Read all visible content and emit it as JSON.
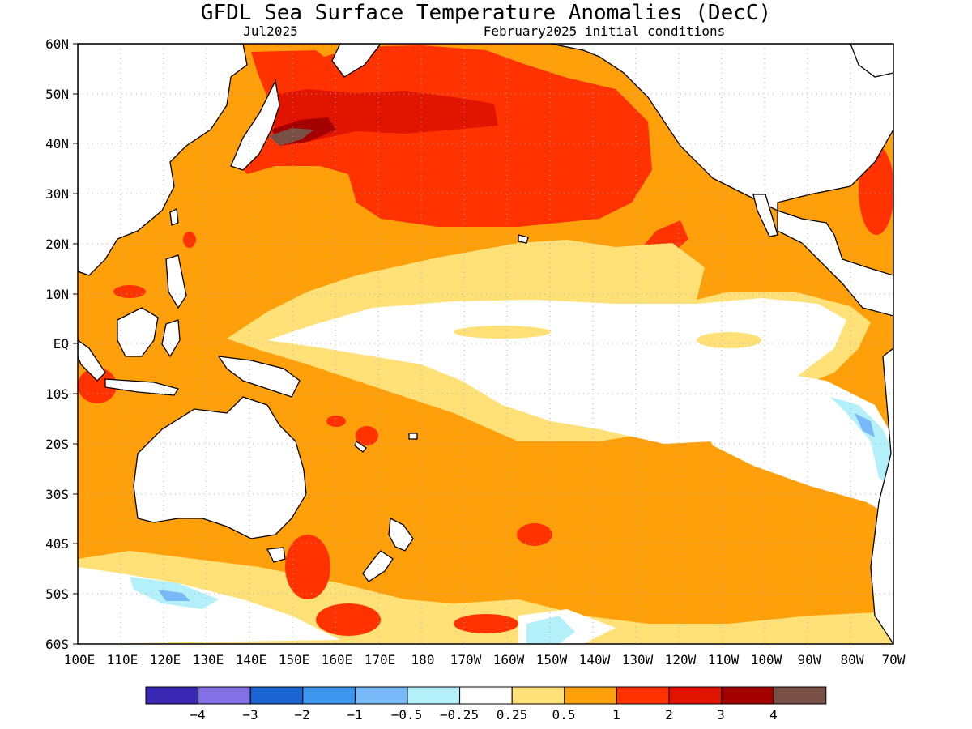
{
  "title": "GFDL Sea Surface Temperature Anomalies (DecC)",
  "subtitle_left": "Jul2025",
  "subtitle_right": "February2025 initial conditions",
  "lat_labels": [
    "60N",
    "50N",
    "40N",
    "30N",
    "20N",
    "10N",
    "EQ",
    "10S",
    "20S",
    "30S",
    "40S",
    "50S",
    "60S"
  ],
  "lon_labels": [
    "100E",
    "110E",
    "120E",
    "130E",
    "140E",
    "150E",
    "160E",
    "170E",
    "180",
    "170W",
    "160W",
    "150W",
    "140W",
    "130W",
    "120W",
    "110W",
    "100W",
    "90W",
    "80W",
    "70W"
  ],
  "colorbar": {
    "colors": [
      "#3a28b4",
      "#8470e6",
      "#1964d2",
      "#3c96f0",
      "#78b9fa",
      "#b4f0fa",
      "#ffffff",
      "#ffe178",
      "#ffa00a",
      "#ff3200",
      "#e11400",
      "#a50000",
      "#785046"
    ],
    "labels": [
      "−4",
      "−3",
      "−2",
      "−1",
      "−0.5",
      "−0.25",
      "0.25",
      "0.5",
      "1",
      "2",
      "3",
      "4"
    ]
  },
  "colors": {
    "land": "#ffffff",
    "coast": "#000000",
    "grid": "#aaaaaa"
  }
}
